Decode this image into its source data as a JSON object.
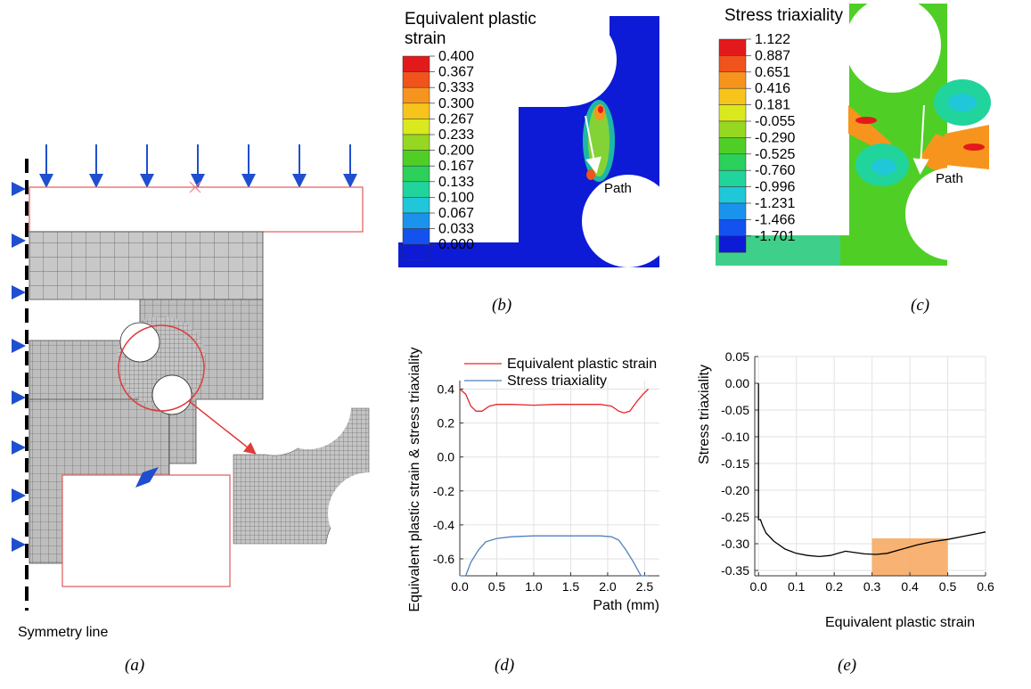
{
  "panels": {
    "a": {
      "caption": "(a)",
      "symmetry_label": "Symmetry line"
    },
    "b": {
      "caption": "(b)",
      "title_line1": "Equivalent plastic",
      "title_line2": "strain",
      "legend": [
        "0.400",
        "0.367",
        "0.333",
        "0.300",
        "0.267",
        "0.233",
        "0.200",
        "0.167",
        "0.133",
        "0.100",
        "0.067",
        "0.033",
        "0.000"
      ],
      "colors": [
        "#e31a1c",
        "#f0531b",
        "#f7941d",
        "#f7c41b",
        "#d9e91e",
        "#96d722",
        "#4fcf26",
        "#2bd15a",
        "#21d49c",
        "#1fc7d8",
        "#1a93ec",
        "#1352ef",
        "#0d1bd6"
      ],
      "path_label": "Path"
    },
    "c": {
      "caption": "(c)",
      "title": "Stress triaxiality",
      "legend": [
        "1.122",
        "0.887",
        "0.651",
        "0.416",
        "0.181",
        "-0.055",
        "-0.290",
        "-0.525",
        "-0.760",
        "-0.996",
        "-1.231",
        "-1.466",
        "-1.701"
      ],
      "colors": [
        "#e31a1c",
        "#f0531b",
        "#f7941d",
        "#f7c41b",
        "#d9e91e",
        "#96d722",
        "#4fcf26",
        "#2bd15a",
        "#21d49c",
        "#1fc7d8",
        "#1a93ec",
        "#1352ef",
        "#0d1bd6"
      ],
      "path_label": "Path"
    },
    "d": {
      "caption": "(d)"
    },
    "e": {
      "caption": "(e)"
    }
  },
  "chart_data": [
    {
      "type": "line",
      "xlabel": "Path (mm)",
      "ylabel": "Equivalent plastic strain & stress triaxiality",
      "xlim": [
        0,
        2.7
      ],
      "ylim": [
        -0.7,
        0.45
      ],
      "xticks": [
        "0.0",
        "0.5",
        "1.0",
        "1.5",
        "2.0",
        "2.5"
      ],
      "yticks": [
        "0.4",
        "0.2",
        "0.0",
        "-0.2",
        "-0.4",
        "-0.6"
      ],
      "grid": true,
      "legend": "top",
      "series": [
        {
          "name": "Equivalent plastic strain",
          "color": "#e8262a",
          "x": [
            0.0,
            0.08,
            0.15,
            0.22,
            0.3,
            0.4,
            0.5,
            0.7,
            1.0,
            1.3,
            1.6,
            1.9,
            2.05,
            2.15,
            2.22,
            2.3,
            2.4,
            2.48,
            2.55
          ],
          "y": [
            0.4,
            0.37,
            0.3,
            0.27,
            0.27,
            0.3,
            0.31,
            0.31,
            0.305,
            0.31,
            0.31,
            0.31,
            0.3,
            0.27,
            0.26,
            0.27,
            0.33,
            0.37,
            0.4
          ]
        },
        {
          "name": "Stress triaxiality",
          "color": "#4f81bd",
          "x": [
            0.0,
            0.08,
            0.15,
            0.25,
            0.35,
            0.5,
            0.7,
            1.0,
            1.3,
            1.6,
            1.9,
            2.05,
            2.15,
            2.25,
            2.35,
            2.45,
            2.55
          ],
          "y": [
            -0.7,
            -0.7,
            -0.62,
            -0.55,
            -0.5,
            -0.48,
            -0.47,
            -0.465,
            -0.465,
            -0.465,
            -0.465,
            -0.47,
            -0.49,
            -0.55,
            -0.62,
            -0.7,
            -0.7
          ]
        }
      ]
    },
    {
      "type": "line",
      "xlabel": "Equivalent plastic strain",
      "ylabel": "Stress triaxiality",
      "xlim": [
        -0.01,
        0.6
      ],
      "ylim": [
        -0.36,
        0.05
      ],
      "xticks": [
        "0.0",
        "0.1",
        "0.2",
        "0.3",
        "0.4",
        "0.5",
        "0.6"
      ],
      "yticks": [
        "0.05",
        "0.00",
        "-0.05",
        "-0.10",
        "-0.15",
        "-0.20",
        "-0.25",
        "-0.30",
        "-0.35"
      ],
      "grid": true,
      "highlight": {
        "x": [
          0.3,
          0.5
        ],
        "y": [
          -0.36,
          -0.29
        ],
        "color": "#f7a55c"
      },
      "series": [
        {
          "color": "#000000",
          "x": [
            0.0,
            0.0,
            0.005,
            0.01,
            0.02,
            0.04,
            0.07,
            0.1,
            0.13,
            0.16,
            0.19,
            0.21,
            0.23,
            0.25,
            0.28,
            0.31,
            0.34,
            0.38,
            0.42,
            0.46,
            0.5,
            0.55,
            0.6
          ],
          "y": [
            0.0,
            -0.255,
            -0.255,
            -0.265,
            -0.28,
            -0.295,
            -0.31,
            -0.318,
            -0.322,
            -0.324,
            -0.322,
            -0.318,
            -0.314,
            -0.316,
            -0.319,
            -0.32,
            -0.318,
            -0.31,
            -0.302,
            -0.296,
            -0.292,
            -0.285,
            -0.278
          ]
        }
      ]
    }
  ]
}
